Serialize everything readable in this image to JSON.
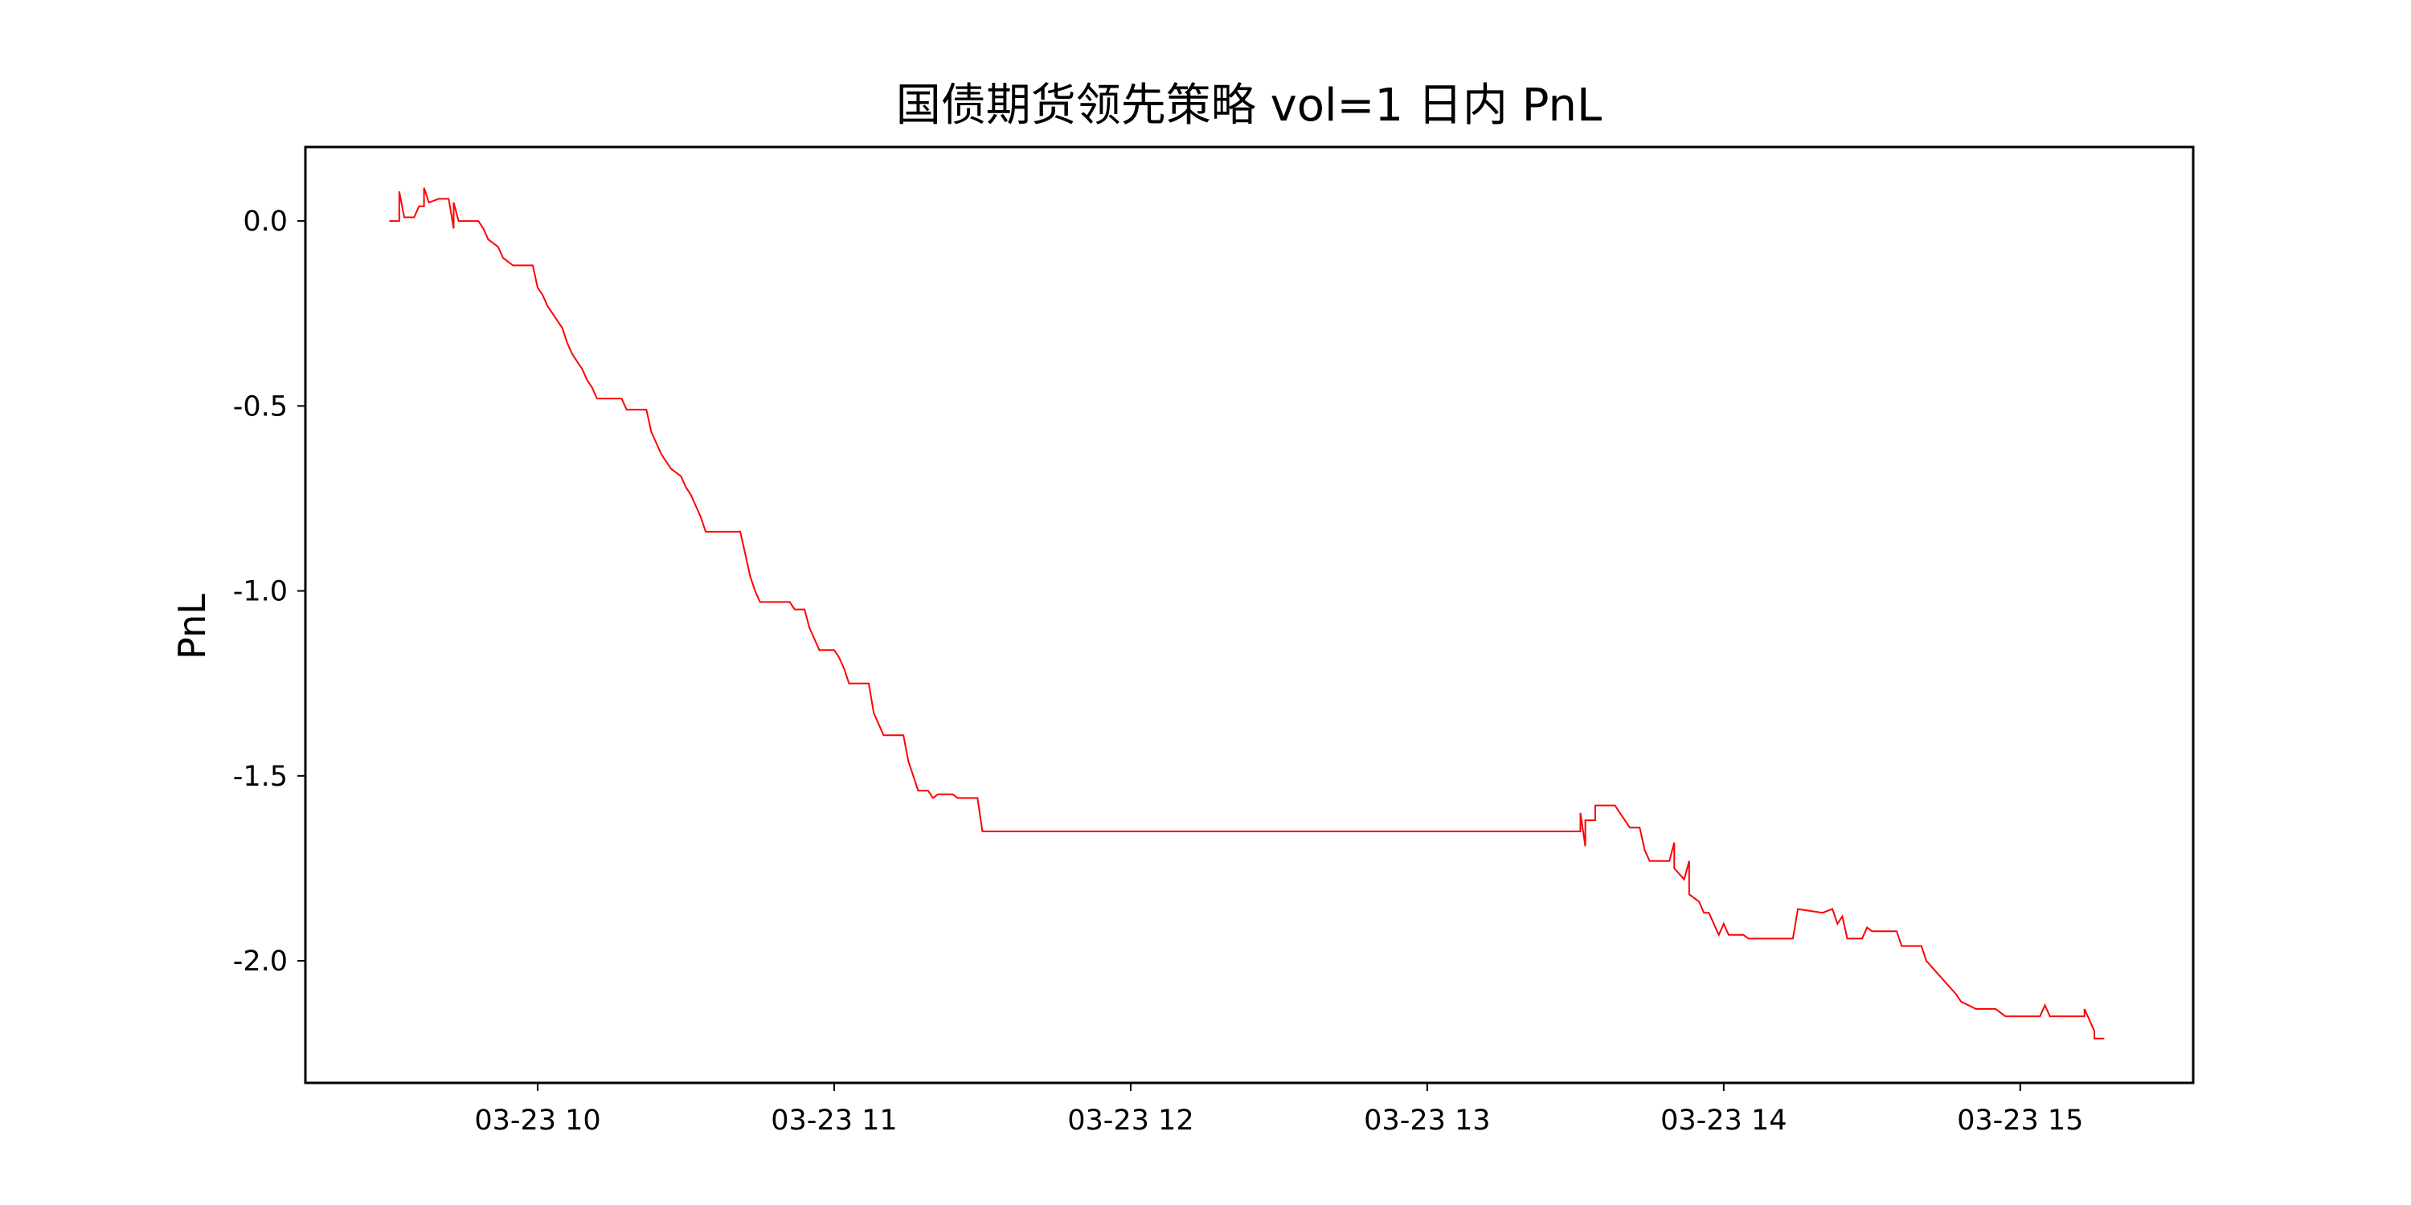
{
  "chart_data": {
    "type": "line",
    "title": "国债期货领先策略  vol=1 日内 PnL",
    "xlabel": "",
    "ylabel": "PnL",
    "series": [
      {
        "color": "#ff0000",
        "points": [
          [
            "03-23 09:30",
            0.0
          ],
          [
            "03-23 09:32",
            0.0
          ],
          [
            "03-23 09:32",
            0.08
          ],
          [
            "03-23 09:33",
            0.01
          ],
          [
            "03-23 09:35",
            0.01
          ],
          [
            "03-23 09:36",
            0.04
          ],
          [
            "03-23 09:37",
            0.04
          ],
          [
            "03-23 09:37",
            0.09
          ],
          [
            "03-23 09:38",
            0.05
          ],
          [
            "03-23 09:40",
            0.06
          ],
          [
            "03-23 09:42",
            0.06
          ],
          [
            "03-23 09:43",
            -0.02
          ],
          [
            "03-23 09:43",
            0.05
          ],
          [
            "03-23 09:44",
            0.0
          ],
          [
            "03-23 09:48",
            0.0
          ],
          [
            "03-23 09:49",
            -0.02
          ],
          [
            "03-23 09:50",
            -0.05
          ],
          [
            "03-23 09:52",
            -0.07
          ],
          [
            "03-23 09:53",
            -0.1
          ],
          [
            "03-23 09:55",
            -0.12
          ],
          [
            "03-23 09:59",
            -0.12
          ],
          [
            "03-23 10:00",
            -0.18
          ],
          [
            "03-23 10:01",
            -0.2
          ],
          [
            "03-23 10:02",
            -0.23
          ],
          [
            "03-23 10:03",
            -0.25
          ],
          [
            "03-23 10:05",
            -0.29
          ],
          [
            "03-23 10:06",
            -0.33
          ],
          [
            "03-23 10:07",
            -0.36
          ],
          [
            "03-23 10:08",
            -0.38
          ],
          [
            "03-23 10:09",
            -0.4
          ],
          [
            "03-23 10:10",
            -0.43
          ],
          [
            "03-23 10:11",
            -0.45
          ],
          [
            "03-23 10:12",
            -0.48
          ],
          [
            "03-23 10:17",
            -0.48
          ],
          [
            "03-23 10:18",
            -0.51
          ],
          [
            "03-23 10:22",
            -0.51
          ],
          [
            "03-23 10:23",
            -0.57
          ],
          [
            "03-23 10:24",
            -0.6
          ],
          [
            "03-23 10:25",
            -0.63
          ],
          [
            "03-23 10:26",
            -0.65
          ],
          [
            "03-23 10:27",
            -0.67
          ],
          [
            "03-23 10:29",
            -0.69
          ],
          [
            "03-23 10:30",
            -0.72
          ],
          [
            "03-23 10:31",
            -0.74
          ],
          [
            "03-23 10:33",
            -0.8
          ],
          [
            "03-23 10:34",
            -0.84
          ],
          [
            "03-23 10:41",
            -0.84
          ],
          [
            "03-23 10:42",
            -0.9
          ],
          [
            "03-23 10:43",
            -0.96
          ],
          [
            "03-23 10:44",
            -1.0
          ],
          [
            "03-23 10:45",
            -1.03
          ],
          [
            "03-23 10:51",
            -1.03
          ],
          [
            "03-23 10:52",
            -1.05
          ],
          [
            "03-23 10:54",
            -1.05
          ],
          [
            "03-23 10:55",
            -1.1
          ],
          [
            "03-23 10:56",
            -1.13
          ],
          [
            "03-23 10:57",
            -1.16
          ],
          [
            "03-23 11:00",
            -1.16
          ],
          [
            "03-23 11:01",
            -1.18
          ],
          [
            "03-23 11:02",
            -1.21
          ],
          [
            "03-23 11:03",
            -1.25
          ],
          [
            "03-23 11:07",
            -1.25
          ],
          [
            "03-23 11:08",
            -1.33
          ],
          [
            "03-23 11:09",
            -1.36
          ],
          [
            "03-23 11:10",
            -1.39
          ],
          [
            "03-23 11:14",
            -1.39
          ],
          [
            "03-23 11:15",
            -1.46
          ],
          [
            "03-23 11:16",
            -1.5
          ],
          [
            "03-23 11:17",
            -1.54
          ],
          [
            "03-23 11:19",
            -1.54
          ],
          [
            "03-23 11:20",
            -1.56
          ],
          [
            "03-23 11:21",
            -1.55
          ],
          [
            "03-23 11:24",
            -1.55
          ],
          [
            "03-23 11:25",
            -1.56
          ],
          [
            "03-23 11:29",
            -1.56
          ],
          [
            "03-23 11:30",
            -1.65
          ],
          [
            "03-23 13:31",
            -1.65
          ],
          [
            "03-23 13:31",
            -1.6
          ],
          [
            "03-23 13:32",
            -1.69
          ],
          [
            "03-23 13:32",
            -1.62
          ],
          [
            "03-23 13:34",
            -1.62
          ],
          [
            "03-23 13:34",
            -1.58
          ],
          [
            "03-23 13:38",
            -1.58
          ],
          [
            "03-23 13:39",
            -1.6
          ],
          [
            "03-23 13:40",
            -1.62
          ],
          [
            "03-23 13:41",
            -1.64
          ],
          [
            "03-23 13:43",
            -1.64
          ],
          [
            "03-23 13:44",
            -1.7
          ],
          [
            "03-23 13:45",
            -1.73
          ],
          [
            "03-23 13:49",
            -1.73
          ],
          [
            "03-23 13:50",
            -1.68
          ],
          [
            "03-23 13:50",
            -1.75
          ],
          [
            "03-23 13:52",
            -1.78
          ],
          [
            "03-23 13:53",
            -1.73
          ],
          [
            "03-23 13:53",
            -1.82
          ],
          [
            "03-23 13:55",
            -1.84
          ],
          [
            "03-23 13:56",
            -1.87
          ],
          [
            "03-23 13:57",
            -1.87
          ],
          [
            "03-23 13:58",
            -1.9
          ],
          [
            "03-23 13:59",
            -1.93
          ],
          [
            "03-23 14:00",
            -1.9
          ],
          [
            "03-23 14:01",
            -1.93
          ],
          [
            "03-23 14:04",
            -1.93
          ],
          [
            "03-23 14:05",
            -1.94
          ],
          [
            "03-23 14:14",
            -1.94
          ],
          [
            "03-23 14:15",
            -1.86
          ],
          [
            "03-23 14:20",
            -1.87
          ],
          [
            "03-23 14:22",
            -1.86
          ],
          [
            "03-23 14:23",
            -1.9
          ],
          [
            "03-23 14:24",
            -1.88
          ],
          [
            "03-23 14:25",
            -1.94
          ],
          [
            "03-23 14:28",
            -1.94
          ],
          [
            "03-23 14:29",
            -1.91
          ],
          [
            "03-23 14:30",
            -1.92
          ],
          [
            "03-23 14:35",
            -1.92
          ],
          [
            "03-23 14:36",
            -1.96
          ],
          [
            "03-23 14:40",
            -1.96
          ],
          [
            "03-23 14:41",
            -2.0
          ],
          [
            "03-23 14:43",
            -2.03
          ],
          [
            "03-23 14:45",
            -2.06
          ],
          [
            "03-23 14:47",
            -2.09
          ],
          [
            "03-23 14:48",
            -2.11
          ],
          [
            "03-23 14:51",
            -2.13
          ],
          [
            "03-23 14:55",
            -2.13
          ],
          [
            "03-23 14:57",
            -2.15
          ],
          [
            "03-23 15:04",
            -2.15
          ],
          [
            "03-23 15:05",
            -2.12
          ],
          [
            "03-23 15:06",
            -2.15
          ],
          [
            "03-23 15:13",
            -2.15
          ],
          [
            "03-23 15:13",
            -2.13
          ],
          [
            "03-23 15:14",
            -2.16
          ],
          [
            "03-23 15:15",
            -2.19
          ],
          [
            "03-23 15:15",
            -2.21
          ],
          [
            "03-23 15:17",
            -2.21
          ]
        ]
      }
    ],
    "xlim": [
      "03-23 09:13",
      "03-23 15:35"
    ],
    "ylim": [
      -2.33,
      0.2
    ],
    "xticks": [
      {
        "value": "03-23 10:00",
        "label": "03-23 10"
      },
      {
        "value": "03-23 11:00",
        "label": "03-23 11"
      },
      {
        "value": "03-23 12:00",
        "label": "03-23 12"
      },
      {
        "value": "03-23 13:00",
        "label": "03-23 13"
      },
      {
        "value": "03-23 14:00",
        "label": "03-23 14"
      },
      {
        "value": "03-23 15:00",
        "label": "03-23 15"
      }
    ],
    "yticks": [
      {
        "value": 0.0,
        "label": "0.0"
      },
      {
        "value": -0.5,
        "label": "-0.5"
      },
      {
        "value": -1.0,
        "label": "-1.0"
      },
      {
        "value": -1.5,
        "label": "-1.5"
      },
      {
        "value": -2.0,
        "label": "-2.0"
      }
    ],
    "grid": false,
    "legend": "none"
  }
}
